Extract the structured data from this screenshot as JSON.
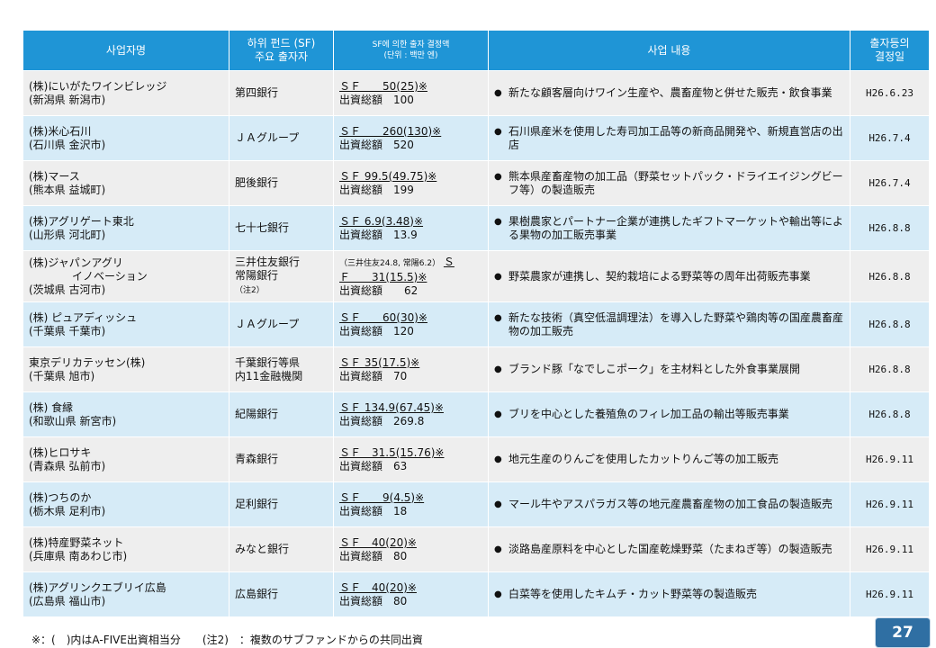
{
  "headers": {
    "company": "사업자명",
    "investor_l1": "하위 펀드 (SF)",
    "investor_l2": "주요 출자자",
    "amount_l1": "SF에 의한 출자 결정액",
    "amount_l2": "(단위 : 백만 엔)",
    "business": "사업 내용",
    "date_l1": "출자등의",
    "date_l2": "결정일"
  },
  "rows": [
    {
      "company_l1": "(株)にいがたワインビレッジ",
      "company_l2": "(新潟県 新潟市)",
      "investor_l1": "第四銀行",
      "investor_l2": "",
      "investor_note": "",
      "amount_pre": "",
      "amount_sf": "ＳＦ　　50(25)※",
      "amount_sf_l2": "",
      "amount_total": "出資総額　100",
      "bullet": "●",
      "desc": "新たな顧客層向けワイン生産や、農畜産物と併せた販売・飲食事業",
      "date": "H26.6.23"
    },
    {
      "company_l1": "(株)米心石川",
      "company_l2": "(石川県 金沢市)",
      "investor_l1": "ＪＡグループ",
      "investor_l2": "",
      "investor_note": "",
      "amount_pre": "",
      "amount_sf": "ＳＦ　　260(130)※",
      "amount_sf_l2": "",
      "amount_total": "出資総額　520",
      "bullet": "●",
      "desc": "石川県産米を使用した寿司加工品等の新商品開発や、新規直営店の出店",
      "date": "H26.7.4"
    },
    {
      "company_l1": "(株)マース",
      "company_l2": "(熊本県 益城町)",
      "investor_l1": "肥後銀行",
      "investor_l2": "",
      "investor_note": "",
      "amount_pre": "",
      "amount_sf": "ＳＦ 99.5(49.75)※",
      "amount_sf_l2": "",
      "amount_total": "出資総額　199",
      "bullet": "●",
      "desc": "熊本県産畜産物の加工品（野菜セットパック・ドライエイジングビーフ等）の製造販売",
      "date": "H26.7.4"
    },
    {
      "company_l1": "(株)アグリゲート東北",
      "company_l2": "(山形県 河北町)",
      "investor_l1": "七十七銀行",
      "investor_l2": "",
      "investor_note": "",
      "amount_pre": "",
      "amount_sf": "ＳＦ 6.9(3.48)※",
      "amount_sf_l2": "",
      "amount_total": "出資総額　13.9",
      "bullet": "●",
      "desc": "果樹農家とパートナー企業が連携したギフトマーケットや輸出等による果物の加工販売事業",
      "date": "H26.8.8"
    },
    {
      "company_l1": "(株)ジャパンアグリ",
      "company_l2": "　　　　イノベーション",
      "company_l3": "(茨城県 古河市)",
      "investor_l1": "三井住友銀行",
      "investor_l2": "常陽銀行",
      "investor_note": "（注2）",
      "amount_pre": "（三井住友24.8, 常陽6.2）",
      "amount_sf": "Ｓ",
      "amount_sf_l2": "Ｆ　　31(15.5)※",
      "amount_total": "出資総額　　62",
      "bullet": "●",
      "desc": "野菜農家が連携し、契約栽培による野菜等の周年出荷販売事業",
      "date": "H26.8.8"
    },
    {
      "company_l1": "(株) ピュアディッシュ",
      "company_l2": "(千葉県 千葉市)",
      "investor_l1": "ＪＡグループ",
      "investor_l2": "",
      "investor_note": "",
      "amount_pre": "",
      "amount_sf": "ＳＦ　　60(30)※",
      "amount_sf_l2": "",
      "amount_total": "出資総額　120",
      "bullet": "●",
      "desc": "新たな技術（真空低温調理法）を導入した野菜や鶏肉等の国産農畜産物の加工販売",
      "date": "H26.8.8"
    },
    {
      "company_l1": "東京デリカテッセン(株)",
      "company_l2": "(千葉県 旭市)",
      "investor_l1": "千葉銀行等県",
      "investor_l2": "内11金融機関",
      "investor_note": "",
      "amount_pre": "",
      "amount_sf": "ＳＦ 35(17.5)※",
      "amount_sf_l2": "",
      "amount_total": "出資総額　70",
      "bullet": "●",
      "desc": "ブランド豚「なでしこポーク」を主材料とした外食事業展開",
      "date": "H26.8.8"
    },
    {
      "company_l1": "(株) 食縁",
      "company_l2": "(和歌山県 新宮市)",
      "investor_l1": "紀陽銀行",
      "investor_l2": "",
      "investor_note": "",
      "amount_pre": "",
      "amount_sf": "ＳＦ 134.9(67.45)※",
      "amount_sf_l2": "",
      "amount_total": "出資総額　269.8",
      "bullet": "●",
      "desc": "ブリを中心とした養殖魚のフィレ加工品の輸出等販売事業",
      "date": "H26.8.8"
    },
    {
      "company_l1": "(株)ヒロサキ",
      "company_l2": "(青森県 弘前市)",
      "investor_l1": "青森銀行",
      "investor_l2": "",
      "investor_note": "",
      "amount_pre": "",
      "amount_sf": "ＳＦ　31.5(15.76)※",
      "amount_sf_l2": "",
      "amount_total": "出資総額　63",
      "bullet": "●",
      "desc": "地元生産のりんごを使用したカットりんご等の加工販売",
      "date": "H26.9.11"
    },
    {
      "company_l1": "(株)つちのか",
      "company_l2": "(栃木県 足利市)",
      "investor_l1": "足利銀行",
      "investor_l2": "",
      "investor_note": "",
      "amount_pre": "",
      "amount_sf": "ＳＦ　　9(4.5)※",
      "amount_sf_l2": "",
      "amount_total": "出資総額　18",
      "bullet": "●",
      "desc": "マール牛やアスパラガス等の地元産農畜産物の加工食品の製造販売",
      "date": "H26.9.11"
    },
    {
      "company_l1": "(株)特産野菜ネット",
      "company_l2": "(兵庫県 南あわじ市)",
      "investor_l1": "みなと銀行",
      "investor_l2": "",
      "investor_note": "",
      "amount_pre": "",
      "amount_sf": "ＳＦ　40(20)※",
      "amount_sf_l2": "",
      "amount_total": "出資総額　80",
      "bullet": "●",
      "desc": "淡路島産原料を中心とした国産乾燥野菜（たまねぎ等）の製造販売",
      "date": "H26.9.11"
    },
    {
      "company_l1": "(株)アグリンクエブリイ広島",
      "company_l2": "(広島県 福山市)",
      "investor_l1": "広島銀行",
      "investor_l2": "",
      "investor_note": "",
      "amount_pre": "",
      "amount_sf": "ＳＦ　40(20)※",
      "amount_sf_l2": "",
      "amount_total": "出資総額　80",
      "bullet": "●",
      "desc": "白菜等を使用したキムチ・カット野菜等の製造販売",
      "date": "H26.9.11"
    }
  ],
  "footnote": "※：(　)内はA-FIVE出資相当分　　(注2)　：複数のサブファンドからの共同出資",
  "page_number": "27"
}
